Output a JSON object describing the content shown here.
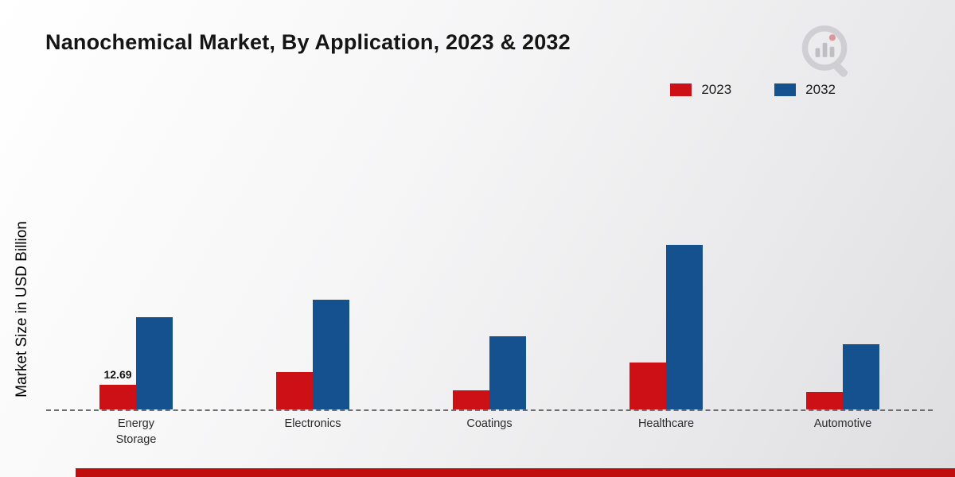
{
  "page": {
    "colors": {
      "bar_2023": "#cc1016",
      "bar_2032": "#14518e",
      "footer_stripe": "#c00d0d",
      "background_from": "#ffffff",
      "background_to": "#dedee0",
      "baseline": "#6e6e6e"
    },
    "logo_icon": "chart-magnifier-logo"
  },
  "chart_data": {
    "type": "bar",
    "title": "Nanochemical Market, By Application, 2023 & 2032",
    "ylabel": "Market Size in USD Billion",
    "xlabel": "",
    "categories": [
      "Energy Storage",
      "Electronics",
      "Coatings",
      "Healthcare",
      "Automotive"
    ],
    "series": [
      {
        "name": "2023",
        "color": "#cc1016",
        "values": [
          12.69,
          19.2,
          9.8,
          24.2,
          9.0
        ]
      },
      {
        "name": "2032",
        "color": "#14518e",
        "values": [
          47.5,
          56.5,
          37.7,
          84.6,
          33.4
        ]
      }
    ],
    "value_labels": [
      {
        "series_index": 0,
        "category_index": 0,
        "text": "12.69"
      }
    ],
    "ylim": [
      0,
      90
    ],
    "grid": false,
    "legend_position": "top-right",
    "baseline_style": "dashed"
  }
}
